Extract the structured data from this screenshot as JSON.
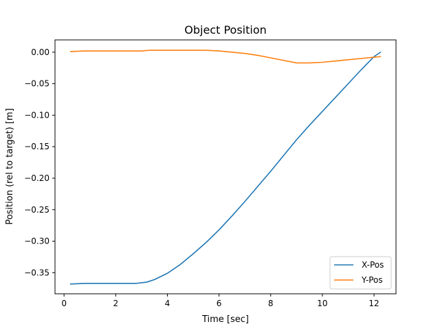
{
  "chart_data": {
    "type": "line",
    "title": "Object Position",
    "xlabel": "Time [sec]",
    "ylabel": "Position (rel to target) [m]",
    "xlim": [
      -0.35,
      12.85
    ],
    "ylim": [
      -0.3835,
      0.0195
    ],
    "xticks": [
      {
        "value": 0,
        "label": "0"
      },
      {
        "value": 2,
        "label": "2"
      },
      {
        "value": 4,
        "label": "4"
      },
      {
        "value": 6,
        "label": "6"
      },
      {
        "value": 8,
        "label": "8"
      },
      {
        "value": 10,
        "label": "10"
      },
      {
        "value": 12,
        "label": "12"
      }
    ],
    "yticks": [
      {
        "value": 0.0,
        "label": "0.00"
      },
      {
        "value": -0.05,
        "label": "−0.05"
      },
      {
        "value": -0.1,
        "label": "−0.10"
      },
      {
        "value": -0.15,
        "label": "−0.15"
      },
      {
        "value": -0.2,
        "label": "−0.20"
      },
      {
        "value": -0.25,
        "label": "−0.25"
      },
      {
        "value": -0.3,
        "label": "−0.30"
      },
      {
        "value": -0.35,
        "label": "−0.35"
      }
    ],
    "grid": false,
    "legend_position": "lower right",
    "series": [
      {
        "name": "X-Pos",
        "color": "#1f77b4",
        "x": [
          0.25,
          0.8,
          1.5,
          2.0,
          2.5,
          2.8,
          3.0,
          3.2,
          3.5,
          4.0,
          4.5,
          5.0,
          5.5,
          6.0,
          6.5,
          7.0,
          7.5,
          8.0,
          8.5,
          9.0,
          9.5,
          10.0,
          10.5,
          11.0,
          11.5,
          12.0,
          12.25
        ],
        "y": [
          -0.368,
          -0.367,
          -0.367,
          -0.367,
          -0.367,
          -0.367,
          -0.366,
          -0.365,
          -0.361,
          -0.351,
          -0.337,
          -0.32,
          -0.302,
          -0.282,
          -0.26,
          -0.237,
          -0.213,
          -0.189,
          -0.164,
          -0.139,
          -0.116,
          -0.094,
          -0.072,
          -0.05,
          -0.028,
          -0.007,
          0.0
        ]
      },
      {
        "name": "Y-Pos",
        "color": "#ff7f0e",
        "x": [
          0.25,
          0.8,
          1.5,
          2.0,
          2.5,
          3.0,
          3.3,
          4.0,
          5.0,
          5.5,
          6.0,
          6.5,
          7.0,
          7.5,
          8.0,
          8.5,
          9.0,
          9.5,
          10.0,
          10.5,
          11.0,
          11.5,
          12.0,
          12.25
        ],
        "y": [
          0.001,
          0.002,
          0.002,
          0.002,
          0.002,
          0.002,
          0.003,
          0.003,
          0.003,
          0.003,
          0.002,
          0.0,
          -0.002,
          -0.005,
          -0.009,
          -0.013,
          -0.017,
          -0.017,
          -0.016,
          -0.014,
          -0.012,
          -0.01,
          -0.008,
          -0.007
        ]
      }
    ]
  }
}
